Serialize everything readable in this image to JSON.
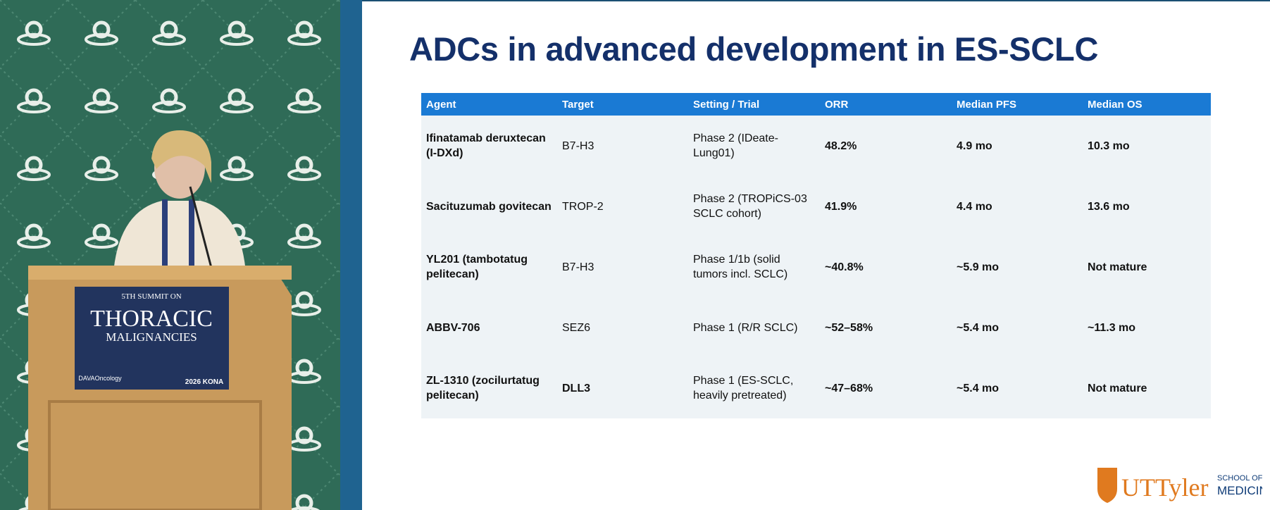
{
  "podium": {
    "line1": "5TH SUMMIT ON",
    "line2": "THORACIC",
    "line3": "MALIGNANCIES",
    "sponsor": "DAVAOncology",
    "event": "2026 KONA"
  },
  "slide": {
    "title": "ADCs in advanced development in ES-SCLC",
    "table": {
      "header": [
        "Agent",
        "Target",
        "Setting / Trial",
        "ORR",
        "Median PFS",
        "Median OS"
      ],
      "rows": [
        [
          "Ifinatamab deruxtecan (I-DXd)",
          "B7-H3",
          "Phase 2 (IDeate-Lung01)",
          "48.2%",
          "4.9 mo",
          "10.3 mo"
        ],
        [
          "Sacituzumab govitecan",
          "TROP-2",
          "Phase 2 (TROPiCS-03 SCLC cohort)",
          "41.9%",
          "4.4 mo",
          "13.6 mo"
        ],
        [
          "YL201 (tambotatug pelitecan)",
          "B7-H3",
          "Phase 1/1b (solid tumors incl. SCLC)",
          "~40.8%",
          "~5.9 mo",
          "Not mature"
        ],
        [
          "ABBV-706",
          "SEZ6",
          "Phase 1 (R/R SCLC)",
          "~52–58%",
          "~5.4 mo",
          "~11.3 mo"
        ],
        [
          "ZL-1310 (zocilurtatug pelitecan)",
          "DLL3",
          "Phase 1 (ES-SCLC, heavily pretreated)",
          "~47–68%",
          "~5.4 mo",
          "Not mature"
        ]
      ]
    },
    "logo": {
      "name": "UTTyler",
      "line1": "SCHOOL OF",
      "line2": "MEDICINE"
    }
  }
}
